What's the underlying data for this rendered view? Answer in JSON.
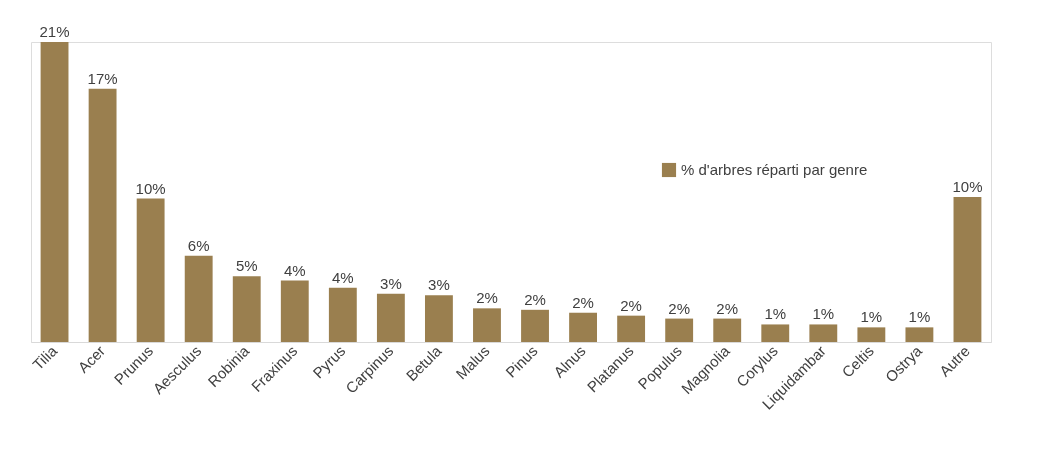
{
  "chart_data": {
    "type": "bar",
    "categories": [
      "Tilia",
      "Acer",
      "Prunus",
      "Aesculus",
      "Robinia",
      "Fraxinus",
      "Pyrus",
      "Carpinus",
      "Betula",
      "Malus",
      "Pinus",
      "Alnus",
      "Platanus",
      "Populus",
      "Magnolia",
      "Corylus",
      "Liquidambar",
      "Celtis",
      "Ostrya",
      "Autre"
    ],
    "series": [
      {
        "name": "% d'arbres réparti par genre",
        "color": "#9a7f4f",
        "values": [
          20.5,
          17.3,
          9.8,
          5.9,
          4.5,
          4.2,
          3.7,
          3.3,
          3.2,
          2.3,
          2.2,
          2.0,
          1.8,
          1.6,
          1.6,
          1.2,
          1.2,
          1.0,
          1.0,
          9.9
        ],
        "value_labels": [
          "21%",
          "17%",
          "10%",
          "6%",
          "5%",
          "4%",
          "4%",
          "3%",
          "3%",
          "2%",
          "2%",
          "2%",
          "2%",
          "2%",
          "2%",
          "1%",
          "1%",
          "1%",
          "1%",
          "10%"
        ]
      }
    ],
    "legend": "right",
    "grid": false
  }
}
